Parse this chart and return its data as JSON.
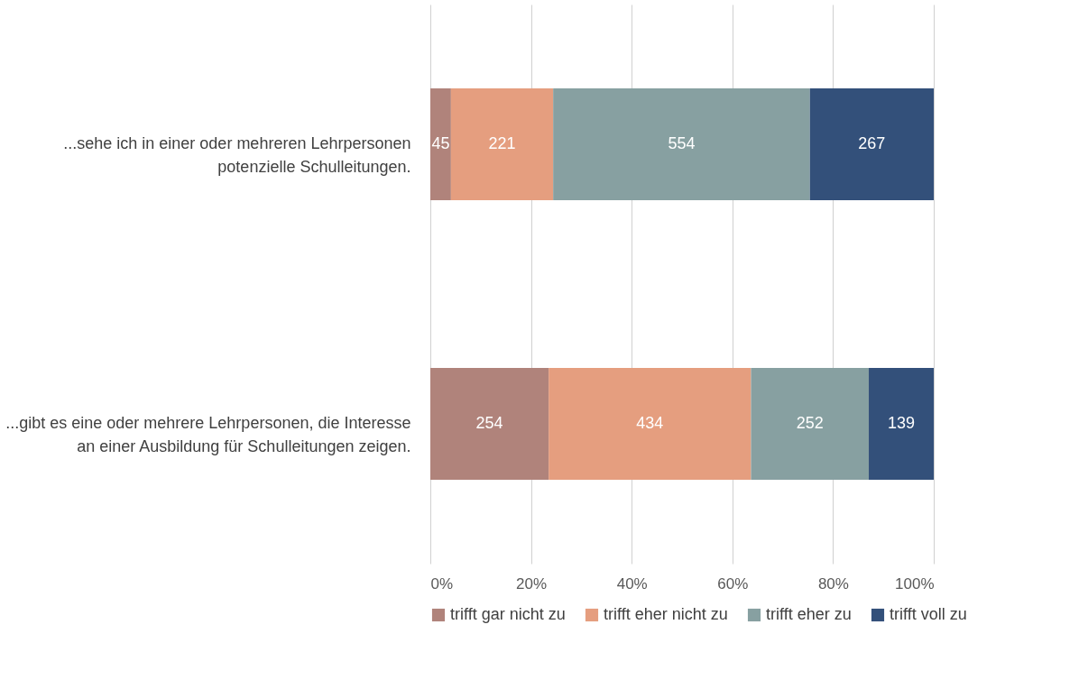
{
  "chart_data": {
    "type": "bar",
    "orientation": "horizontal",
    "stacked": true,
    "categories": [
      "...sehe ich in einer oder mehreren Lehrpersonen potenzielle Schulleitungen.",
      "...gibt es eine oder mehrere Lehrpersonen, die Interesse an einer Ausbildung für Schulleitungen zeigen."
    ],
    "series": [
      {
        "name": "trifft gar nicht zu",
        "color": "#b0837b",
        "values": [
          4.1,
          23.5
        ]
      },
      {
        "name": "trifft eher nicht zu",
        "color": "#e59e7f",
        "values": [
          20.3,
          40.2
        ]
      },
      {
        "name": "trifft eher zu",
        "color": "#87a0a1",
        "values": [
          51.0,
          23.4
        ]
      },
      {
        "name": "trifft voll zu",
        "color": "#33507a",
        "values": [
          24.6,
          12.9
        ]
      }
    ],
    "annotations": [
      "45",
      "221",
      "554",
      "267",
      "254",
      "434",
      "252",
      "139"
    ],
    "xlim": [
      0,
      100
    ],
    "xticks": [
      {
        "value": 0,
        "label": "0%"
      },
      {
        "value": 20,
        "label": "20%"
      },
      {
        "value": 40,
        "label": "40%"
      },
      {
        "value": 60,
        "label": "60%"
      },
      {
        "value": 80,
        "label": "80%"
      },
      {
        "value": 100,
        "label": "100%"
      }
    ],
    "grid": "x",
    "legend": "bottom"
  }
}
